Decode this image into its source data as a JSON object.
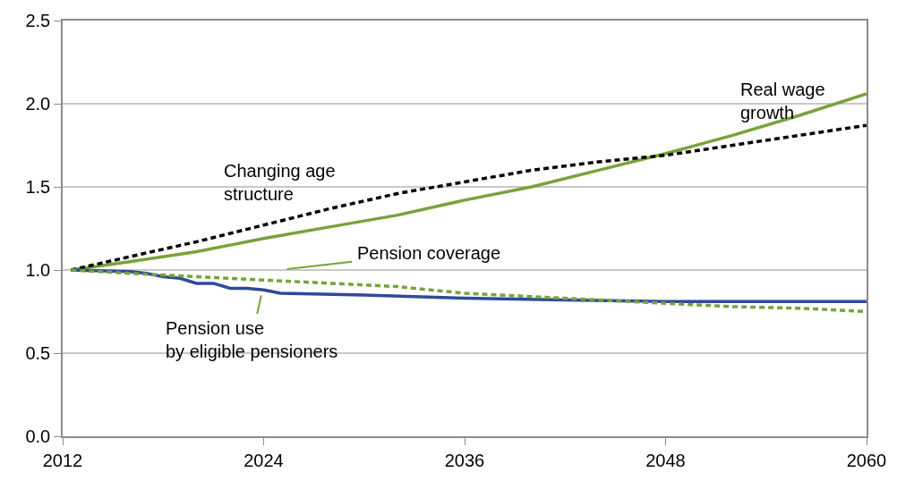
{
  "chart_data": {
    "type": "line",
    "x": [
      2012.5,
      2016,
      2020,
      2024,
      2028,
      2032,
      2036,
      2040,
      2044,
      2048,
      2052,
      2056,
      2060
    ],
    "series": [
      {
        "color": "#77a33a",
        "line_style": "solid",
        "values": [
          1.0,
          1.05,
          1.11,
          1.19,
          1.26,
          1.33,
          1.42,
          1.5,
          1.6,
          1.7,
          1.81,
          1.93,
          2.06
        ]
      },
      {
        "color": "#000000",
        "line_style": "dashed",
        "values": [
          1.0,
          1.08,
          1.17,
          1.27,
          1.37,
          1.46,
          1.53,
          1.6,
          1.65,
          1.69,
          1.75,
          1.81,
          1.87
        ]
      },
      {
        "color": "#2e4a9a",
        "line_style": "solid",
        "x": [
          2012.5,
          2016,
          2017,
          2018,
          2019,
          2020,
          2021,
          2022,
          2023,
          2024,
          2025,
          2030,
          2036,
          2042,
          2048,
          2054,
          2060
        ],
        "values": [
          1.0,
          0.99,
          0.98,
          0.96,
          0.95,
          0.92,
          0.92,
          0.89,
          0.89,
          0.88,
          0.86,
          0.85,
          0.83,
          0.82,
          0.81,
          0.81,
          0.81
        ]
      },
      {
        "color": "#77a33a",
        "line_style": "dashed",
        "values": [
          1.0,
          0.98,
          0.96,
          0.94,
          0.92,
          0.9,
          0.86,
          0.84,
          0.82,
          0.8,
          0.78,
          0.77,
          0.75
        ]
      }
    ],
    "annotations": [
      "Real wage\ngrowth",
      "Changing age\nstructure",
      "Pension coverage",
      "Pension use\nby eligible pensioners"
    ],
    "xlim": [
      2012,
      2060
    ],
    "xticks": [
      2012,
      2024,
      2036,
      2048,
      2060
    ],
    "ylim": [
      0,
      2.5
    ],
    "yticks": [
      {
        "value": 0,
        "label": "0.0"
      },
      {
        "value": 0.5,
        "label": "0.5"
      },
      {
        "value": 1,
        "label": "1.0"
      },
      {
        "value": 1.5,
        "label": "1.5"
      },
      {
        "value": 2,
        "label": "2.0"
      },
      {
        "value": 2.5,
        "label": "2.5"
      }
    ],
    "grid": "y",
    "marker": "none"
  }
}
